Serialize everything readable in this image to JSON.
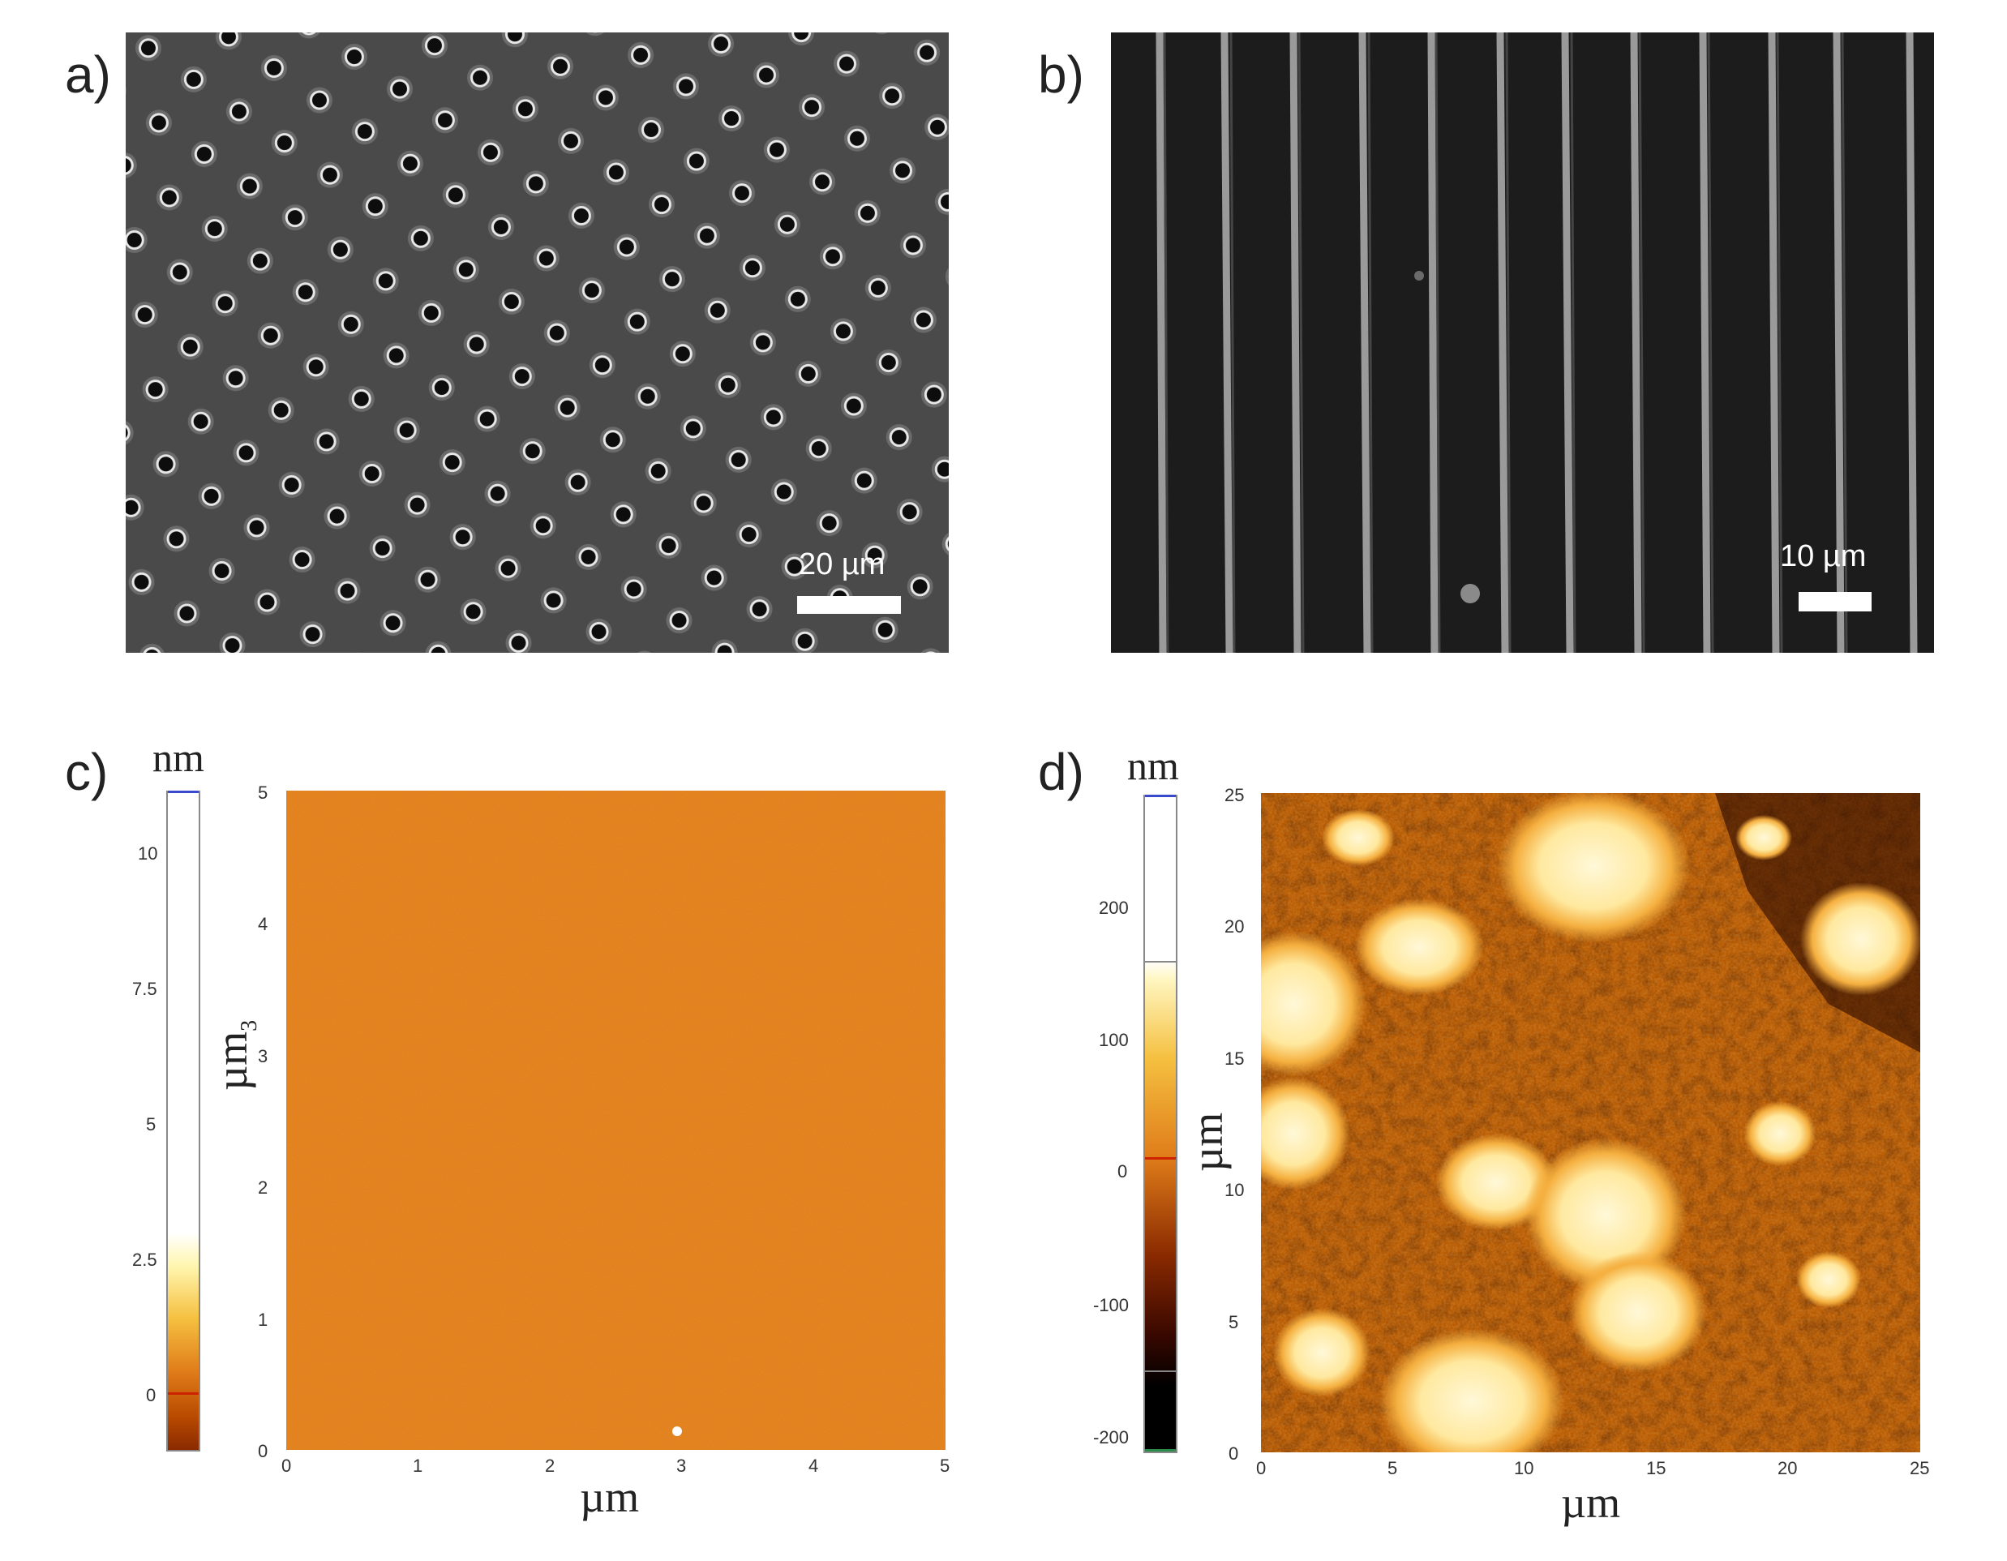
{
  "panels": {
    "a": {
      "label": "a)",
      "scale_text": "20 µm",
      "colors": {
        "background": "#4a4a4a",
        "pore": "#0d0d0d",
        "rim": "#e8e8e8"
      }
    },
    "b": {
      "label": "b)",
      "scale_text": "10 µm",
      "colors": {
        "background": "#1c1c1c",
        "line": "#9a9a9a"
      }
    },
    "c": {
      "label": "c)",
      "colorbar_unit": "nm",
      "colorbar_ticks": [
        "10",
        "7.5",
        "5",
        "2.5",
        "0"
      ],
      "x_ticks": [
        "0",
        "1",
        "2",
        "3",
        "4",
        "5"
      ],
      "y_ticks": [
        "0",
        "1",
        "2",
        "3",
        "4",
        "5"
      ],
      "x_title": "µm",
      "y_title": "µm",
      "y_title_sub": "3",
      "colors": {
        "surface": "#e07d1a"
      }
    },
    "d": {
      "label": "d)",
      "colorbar_unit": "nm",
      "colorbar_ticks": [
        "200",
        "100",
        "0",
        "-100",
        "-200"
      ],
      "x_ticks": [
        "0",
        "5",
        "10",
        "15",
        "20",
        "25"
      ],
      "y_ticks": [
        "0",
        "5",
        "10",
        "15",
        "20",
        "25"
      ],
      "x_title": "µm",
      "y_title": "µm",
      "colors": {
        "low": "#1a0500",
        "mid": "#b85a00",
        "high": "#fff4c8"
      }
    }
  }
}
